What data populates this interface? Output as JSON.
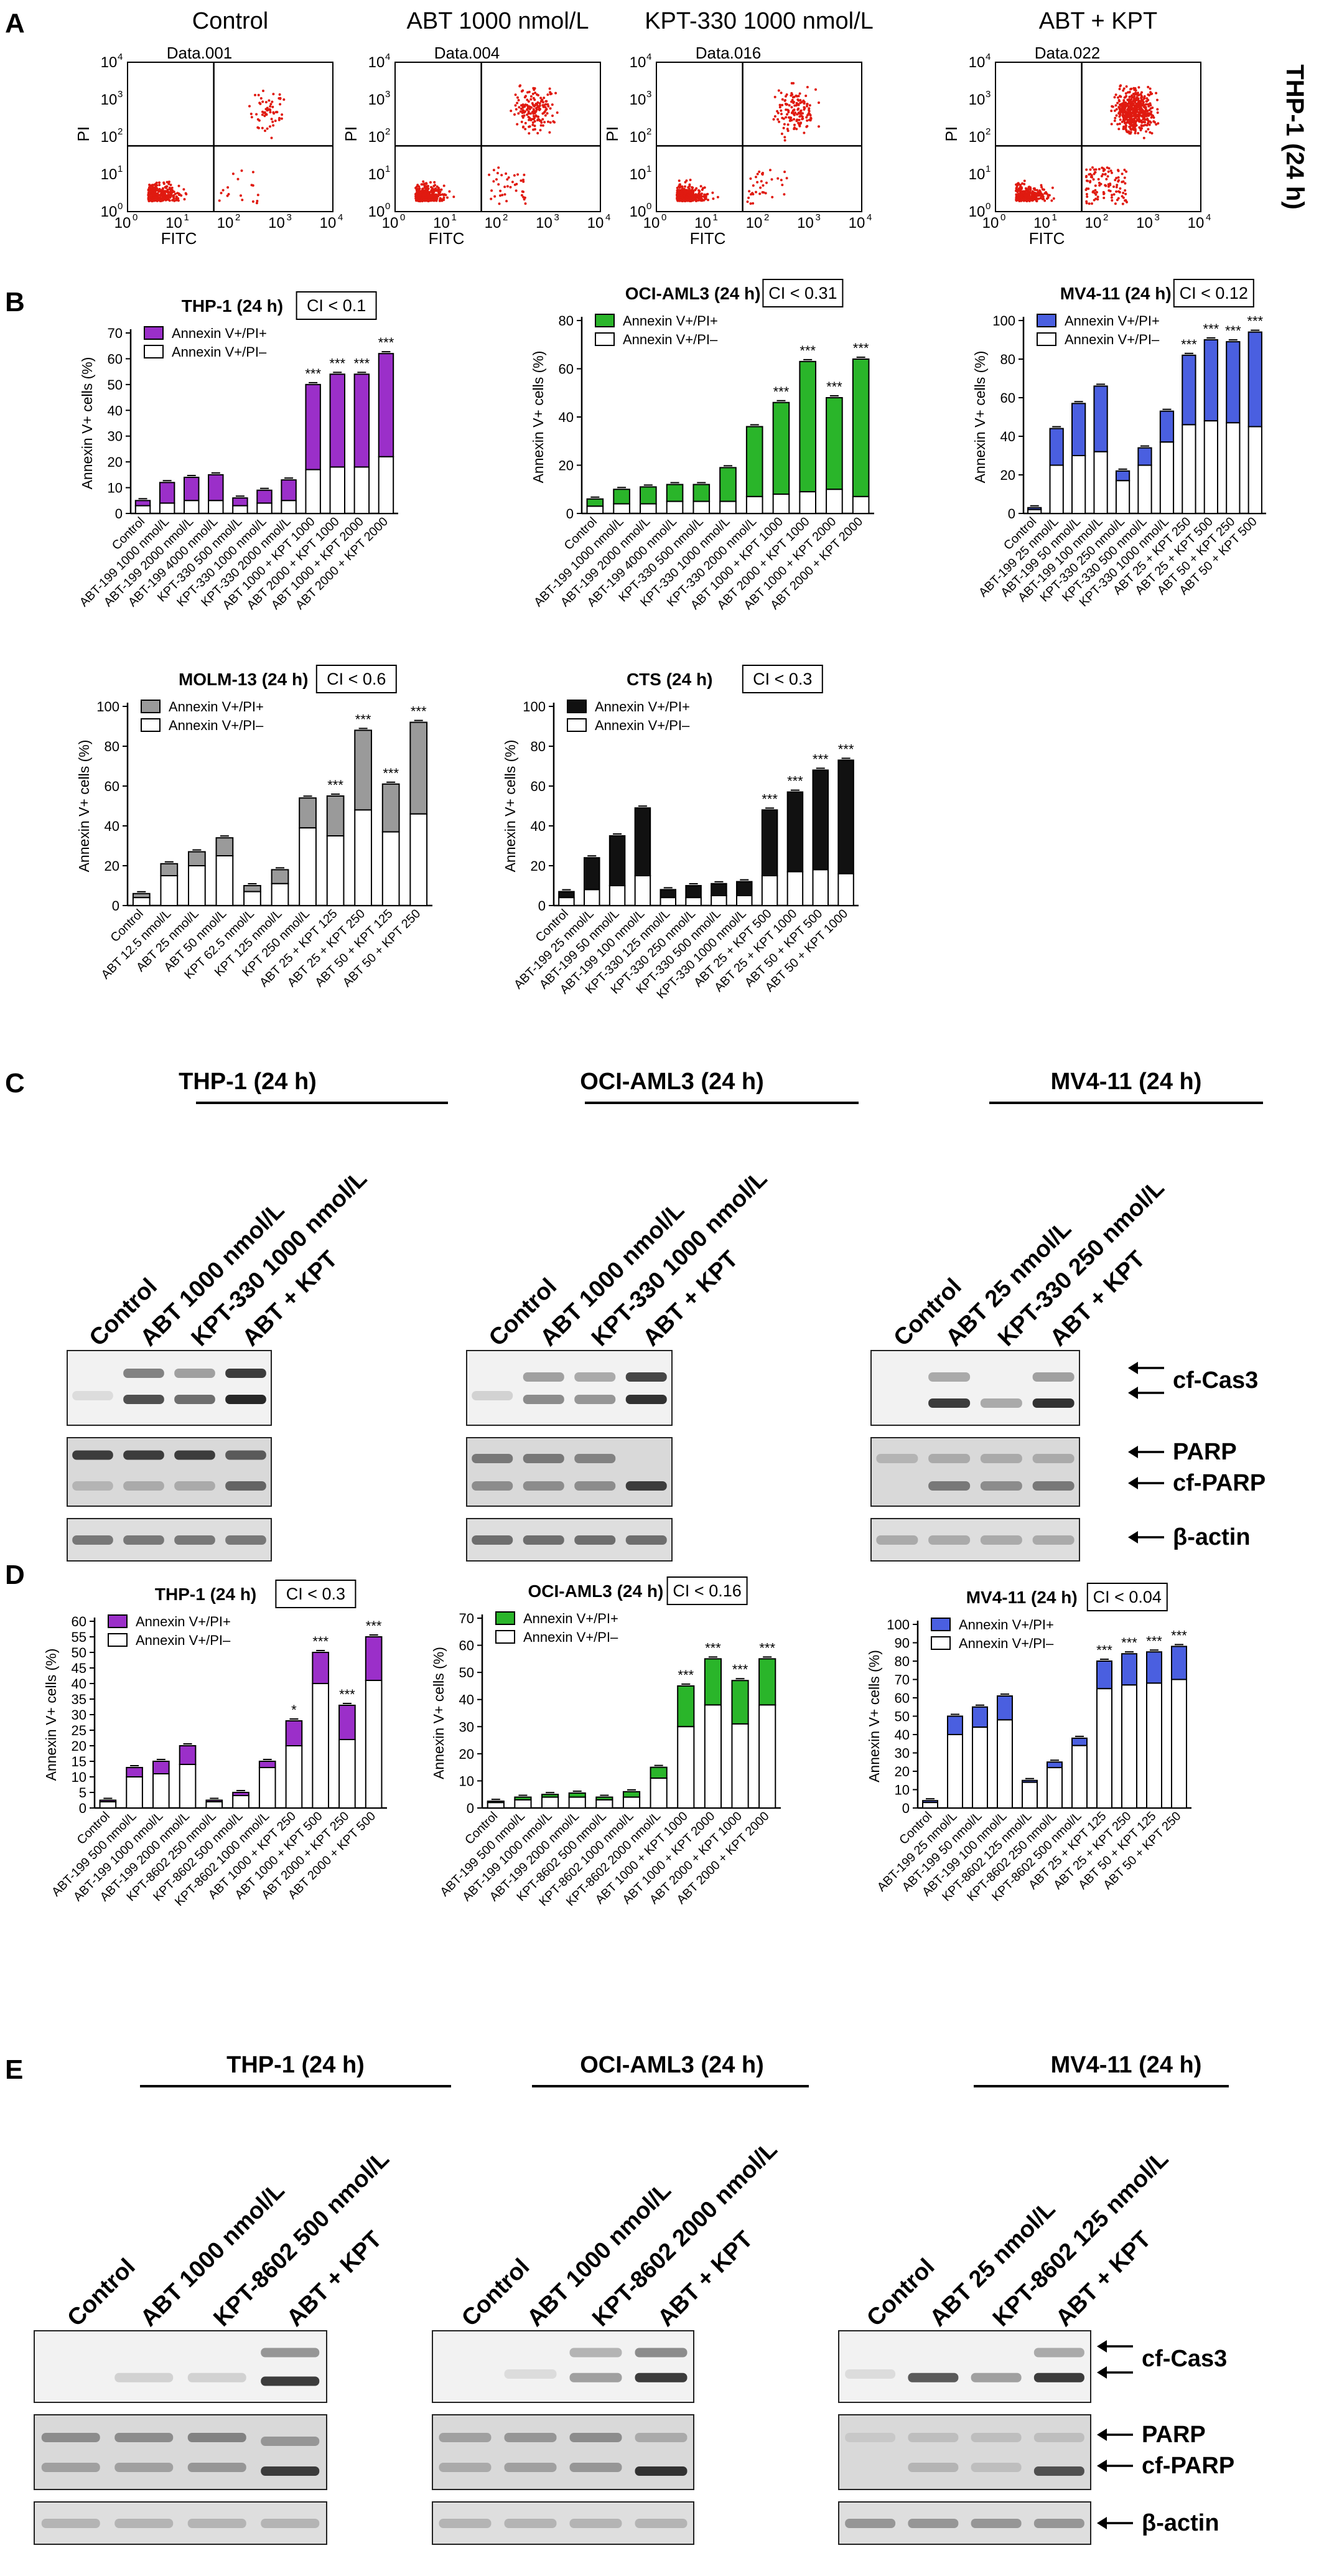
{
  "panel_letters": {
    "A": "A",
    "B": "B",
    "C": "C",
    "D": "D",
    "E": "E"
  },
  "panelA": {
    "side_label": "THP-1 (24 h)",
    "xlabel": "FITC",
    "ylabel": "PI",
    "tick_labels": [
      "10",
      "10",
      "10",
      "10",
      "10"
    ],
    "tick_exponents": [
      "0",
      "1",
      "2",
      "3",
      "4"
    ],
    "plots": [
      {
        "title": "Control",
        "data_label": "Data.001",
        "dense": 320,
        "late": 60,
        "early": 18
      },
      {
        "title": "ABT 1000 nmol/L",
        "data_label": "Data.004",
        "dense": 340,
        "late": 170,
        "early": 40
      },
      {
        "title": "KPT-330 1000 nmol/L",
        "data_label": "Data.016",
        "dense": 330,
        "late": 150,
        "early": 35
      },
      {
        "title": "ABT + KPT",
        "data_label": "Data.022",
        "dense": 300,
        "late": 520,
        "early": 110
      }
    ]
  },
  "chart_data": [
    {
      "type": "bar",
      "id": "B1",
      "title": "THP-1 (24 h)",
      "ci": "CI < 0.1",
      "ylabel": "Annexin V+ cells (%)",
      "ylim": [
        0,
        70
      ],
      "yticks": [
        0,
        10,
        20,
        30,
        40,
        50,
        60,
        70
      ],
      "color": "#9b2fc9",
      "legend": [
        "Annexin V+/PI+",
        "Annexin V+/PI–"
      ],
      "categories": [
        "Control",
        "ABT-199 1000 nmol/L",
        "ABT-199 2000 nmol/L",
        "ABT-199 4000 nmol/L",
        "KPT-330 500 nmol/L",
        "KPT-330 1000 nmol/L",
        "KPT-330 2000 nmol/L",
        "ABT 1000 + KPT 1000",
        "ABT 2000 + KPT 1000",
        "ABT 1000 + KPT 2000",
        "ABT 2000 + KPT 2000"
      ],
      "series": [
        {
          "name": "Annexin V+/PI–",
          "values": [
            3,
            4,
            5,
            5,
            3,
            4,
            5,
            17,
            18,
            18,
            22
          ]
        },
        {
          "name": "Annexin V+/PI+",
          "values": [
            2,
            8,
            9,
            10,
            3,
            5,
            8,
            33,
            36,
            36,
            40
          ]
        }
      ],
      "stars": [
        "",
        "",
        "",
        "",
        "",
        "",
        "",
        "***",
        "***",
        "***",
        "***"
      ]
    },
    {
      "type": "bar",
      "id": "B2",
      "title": "OCI-AML3 (24 h)",
      "ci": "CI < 0.31",
      "ylabel": "Annexin V+ cells (%)",
      "ylim": [
        0,
        80
      ],
      "yticks": [
        0,
        20,
        40,
        60,
        80
      ],
      "color": "#2ab52a",
      "legend": [
        "Annexin V+/PI+",
        "Annexin V+/PI–"
      ],
      "categories": [
        "Control",
        "ABT-199 1000 nmol/L",
        "ABT-199 2000 nmol/L",
        "ABT-199 4000 nmol/L",
        "KPT-330 500 nmol/L",
        "KPT-330 1000 nmol/L",
        "KPT-330 2000 nmol/L",
        "ABT 1000 + KPT 1000",
        "ABT 2000 + KPT 1000",
        "ABT 1000 + KPT 2000",
        "ABT 2000 + KPT 2000"
      ],
      "series": [
        {
          "name": "Annexin V+/PI–",
          "values": [
            3,
            4,
            4,
            5,
            5,
            5,
            7,
            8,
            9,
            10,
            7
          ]
        },
        {
          "name": "Annexin V+/PI+",
          "values": [
            3,
            6,
            7,
            7,
            7,
            14,
            29,
            38,
            54,
            38,
            57
          ]
        }
      ],
      "stars": [
        "",
        "",
        "",
        "",
        "",
        "",
        "",
        "***",
        "***",
        "***",
        "***"
      ]
    },
    {
      "type": "bar",
      "id": "B3",
      "title": "MV4-11 (24 h)",
      "ci": "CI < 0.12",
      "ylabel": "Annexin V+ cells (%)",
      "ylim": [
        0,
        100
      ],
      "yticks": [
        0,
        20,
        40,
        60,
        80,
        100
      ],
      "color": "#4a5fe0",
      "legend": [
        "Annexin V+/PI+",
        "Annexin V+/PI–"
      ],
      "categories": [
        "Control",
        "ABT-199 25 nmol/L",
        "ABT-199 50 nmol/L",
        "ABT-199 100 nmol/L",
        "KPT-330 250 nmol/L",
        "KPT-330 500 nmol/L",
        "KPT-330 1000 nmol/L",
        "ABT 25 + KPT 250",
        "ABT 25 + KPT 500",
        "ABT 50 + KPT 250",
        "ABT 50 + KPT 500"
      ],
      "series": [
        {
          "name": "Annexin V+/PI–",
          "values": [
            2,
            25,
            30,
            32,
            17,
            25,
            37,
            46,
            48,
            47,
            45
          ]
        },
        {
          "name": "Annexin V+/PI+",
          "values": [
            1,
            19,
            27,
            34,
            5,
            9,
            16,
            36,
            42,
            42,
            49
          ]
        }
      ],
      "stars": [
        "",
        "",
        "",
        "",
        "",
        "",
        "",
        "***",
        "***",
        "***",
        "***"
      ]
    },
    {
      "type": "bar",
      "id": "B4",
      "title": "MOLM-13 (24 h)",
      "ci": "CI < 0.6",
      "ylabel": "Annexin V+ cells (%)",
      "ylim": [
        0,
        100
      ],
      "yticks": [
        0,
        20,
        40,
        60,
        80,
        100
      ],
      "color": "#9a9a9a",
      "legend": [
        "Annexin V+/PI+",
        "Annexin V+/PI–"
      ],
      "categories": [
        "Control",
        "ABT 12.5 nmol/L",
        "ABT 25 nmol/L",
        "ABT 50 nmol/L",
        "KPT 62.5 nmol/L",
        "KPT 125 nmol/L",
        "KPT 250 nmol/L",
        "ABT 25 + KPT 125",
        "ABT 25 + KPT 250",
        "ABT 50 + KPT 125",
        "ABT 50 + KPT 250"
      ],
      "series": [
        {
          "name": "Annexin V+/PI–",
          "values": [
            4,
            15,
            20,
            25,
            7,
            11,
            39,
            35,
            48,
            37,
            46
          ]
        },
        {
          "name": "Annexin V+/PI+",
          "values": [
            2,
            6,
            7,
            9,
            3,
            7,
            15,
            20,
            40,
            24,
            46
          ]
        }
      ],
      "stars": [
        "",
        "",
        "",
        "",
        "",
        "",
        "",
        "***",
        "***",
        "***",
        "***"
      ]
    },
    {
      "type": "bar",
      "id": "B5",
      "title": "CTS (24 h)",
      "ci": "CI < 0.3",
      "ylabel": "Annexin V+ cells (%)",
      "ylim": [
        0,
        100
      ],
      "yticks": [
        0,
        20,
        40,
        60,
        80,
        100
      ],
      "color": "#111111",
      "legend": [
        "Annexin V+/PI+",
        "Annexin V+/PI–"
      ],
      "categories": [
        "Control",
        "ABT-199 25 nmol/L",
        "ABT-199 50 nmol/L",
        "ABT-199 100 nmol/L",
        "KPT-330 125 nmol/L",
        "KPT-330 250 nmol/L",
        "KPT-330 500 nmol/L",
        "KPT-330 1000 nmol/L",
        "ABT 25 + KPT 500",
        "ABT 25 + KPT 1000",
        "ABT 50 + KPT 500",
        "ABT 50 + KPT 1000"
      ],
      "series": [
        {
          "name": "Annexin V+/PI–",
          "values": [
            4,
            8,
            10,
            15,
            4,
            4,
            5,
            5,
            15,
            17,
            18,
            16
          ]
        },
        {
          "name": "Annexin V+/PI+",
          "values": [
            3,
            16,
            25,
            34,
            4,
            6,
            6,
            7,
            33,
            40,
            50,
            57
          ]
        }
      ],
      "stars": [
        "",
        "",
        "",
        "",
        "",
        "",
        "",
        "",
        "***",
        "***",
        "***",
        "***"
      ]
    },
    {
      "type": "bar",
      "id": "D1",
      "title": "THP-1 (24 h)",
      "ci": "CI < 0.3",
      "ylabel": "Annexin V+ cells (%)",
      "ylim": [
        0,
        60
      ],
      "yticks": [
        0,
        5,
        10,
        15,
        20,
        25,
        30,
        35,
        40,
        45,
        50,
        55,
        60
      ],
      "color": "#9b2fc9",
      "legend": [
        "Annexin V+/PI+",
        "Annexin V+/PI–"
      ],
      "categories": [
        "Control",
        "ABT-199 500 nmol/L",
        "ABT-199 1000 nmol/L",
        "ABT-199 2000 nmol/L",
        "KPT-8602 250 nmol/L",
        "KPT-8602 500 nmol/L",
        "KPT-8602 1000 nmol/L",
        "ABT 1000 + KPT 250",
        "ABT 1000 + KPT 500",
        "ABT 2000 + KPT 250",
        "ABT 2000 + KPT 500"
      ],
      "series": [
        {
          "name": "Annexin V+/PI–",
          "values": [
            2,
            10,
            11,
            14,
            2,
            4,
            13,
            20,
            40,
            22,
            41
          ]
        },
        {
          "name": "Annexin V+/PI+",
          "values": [
            0.5,
            3,
            4,
            6,
            0.5,
            1,
            2,
            8,
            10,
            11,
            14
          ]
        }
      ],
      "stars": [
        "",
        "",
        "",
        "",
        "",
        "",
        "",
        "*",
        "***",
        "***",
        "***"
      ]
    },
    {
      "type": "bar",
      "id": "D2",
      "title": "OCI-AML3 (24 h)",
      "ci": "CI < 0.16",
      "ylabel": "Annexin V+ cells (%)",
      "ylim": [
        0,
        70
      ],
      "yticks": [
        0,
        10,
        20,
        30,
        40,
        50,
        60,
        70
      ],
      "color": "#2ab52a",
      "legend": [
        "Annexin V+/PI+",
        "Annexin V+/PI–"
      ],
      "categories": [
        "Control",
        "ABT-199 500 nmol/L",
        "ABT-199 1000 nmol/L",
        "ABT-199 2000 nmol/L",
        "KPT-8602 500 nmol/L",
        "KPT-8602 1000 nmol/L",
        "KPT-8602 2000 nmol/L",
        "ABT 1000 + KPT 1000",
        "ABT 1000 + KPT 2000",
        "ABT 2000 + KPT 1000",
        "ABT 2000 + KPT 2000"
      ],
      "series": [
        {
          "name": "Annexin V+/PI–",
          "values": [
            2,
            3,
            4,
            4,
            3,
            4,
            11,
            30,
            38,
            31,
            38
          ]
        },
        {
          "name": "Annexin V+/PI+",
          "values": [
            0.5,
            1,
            1,
            1.5,
            1,
            2,
            4,
            15,
            17,
            16,
            17
          ]
        }
      ],
      "stars": [
        "",
        "",
        "",
        "",
        "",
        "",
        "",
        "***",
        "***",
        "***",
        "***"
      ]
    },
    {
      "type": "bar",
      "id": "D3",
      "title": "MV4-11 (24 h)",
      "ci": "CI < 0.04",
      "ylabel": "Annexin V+ cells (%)",
      "ylim": [
        0,
        100
      ],
      "yticks": [
        0,
        10,
        20,
        30,
        40,
        50,
        60,
        70,
        80,
        90,
        100
      ],
      "color": "#4a5fe0",
      "legend": [
        "Annexin V+/PI+",
        "Annexin V+/PI–"
      ],
      "categories": [
        "Control",
        "ABT-199 25 nmol/L",
        "ABT-199 50 nmol/L",
        "ABT-199 100 nmol/L",
        "KPT-8602 125 nmol/L",
        "KPT-8602 250 nmol/L",
        "KPT-8602 500 nmol/L",
        "ABT 25 + KPT 125",
        "ABT 25 + KPT 250",
        "ABT 50 + KPT 125",
        "ABT 50 + KPT 250"
      ],
      "series": [
        {
          "name": "Annexin V+/PI–",
          "values": [
            3,
            40,
            44,
            48,
            14,
            22,
            34,
            65,
            67,
            68,
            70
          ]
        },
        {
          "name": "Annexin V+/PI+",
          "values": [
            1,
            10,
            11,
            13,
            1,
            3,
            4,
            15,
            17,
            17,
            18
          ]
        }
      ],
      "stars": [
        "",
        "",
        "",
        "",
        "",
        "",
        "",
        "***",
        "***",
        "***",
        "***"
      ]
    }
  ],
  "panelC": {
    "groups": [
      {
        "title": "THP-1 (24 h)",
        "lanes": [
          "Control",
          "ABT 1000 nmol/L",
          "KPT-330 1000 nmol/L",
          "ABT + KPT"
        ]
      },
      {
        "title": "OCI-AML3  (24 h)",
        "lanes": [
          "Control",
          "ABT 1000 nmol/L",
          "KPT-330 1000 nmol/L",
          "ABT + KPT"
        ]
      },
      {
        "title": "MV4-11  (24 h)",
        "lanes": [
          "Control",
          "ABT 25 nmol/L",
          "KPT-330 250 nmol/L",
          "ABT + KPT"
        ]
      }
    ],
    "labels": [
      "cf-Cas3",
      "PARP",
      "cf-PARP",
      "β-actin"
    ]
  },
  "panelE": {
    "groups": [
      {
        "title": "THP-1 (24 h)",
        "lanes": [
          "Control",
          "ABT 1000 nmol/L",
          "KPT-8602 500 nmol/L",
          "ABT + KPT"
        ]
      },
      {
        "title": "OCI-AML3  (24 h)",
        "lanes": [
          "Control",
          "ABT 1000 nmol/L",
          "KPT-8602 2000 nmol/L",
          "ABT + KPT"
        ]
      },
      {
        "title": "MV4-11  (24 h)",
        "lanes": [
          "Control",
          "ABT 25 nmol/L",
          "KPT-8602 125 nmol/L",
          "ABT + KPT"
        ]
      }
    ],
    "labels": [
      "cf-Cas3",
      "PARP",
      "cf-PARP",
      "β-actin"
    ]
  }
}
